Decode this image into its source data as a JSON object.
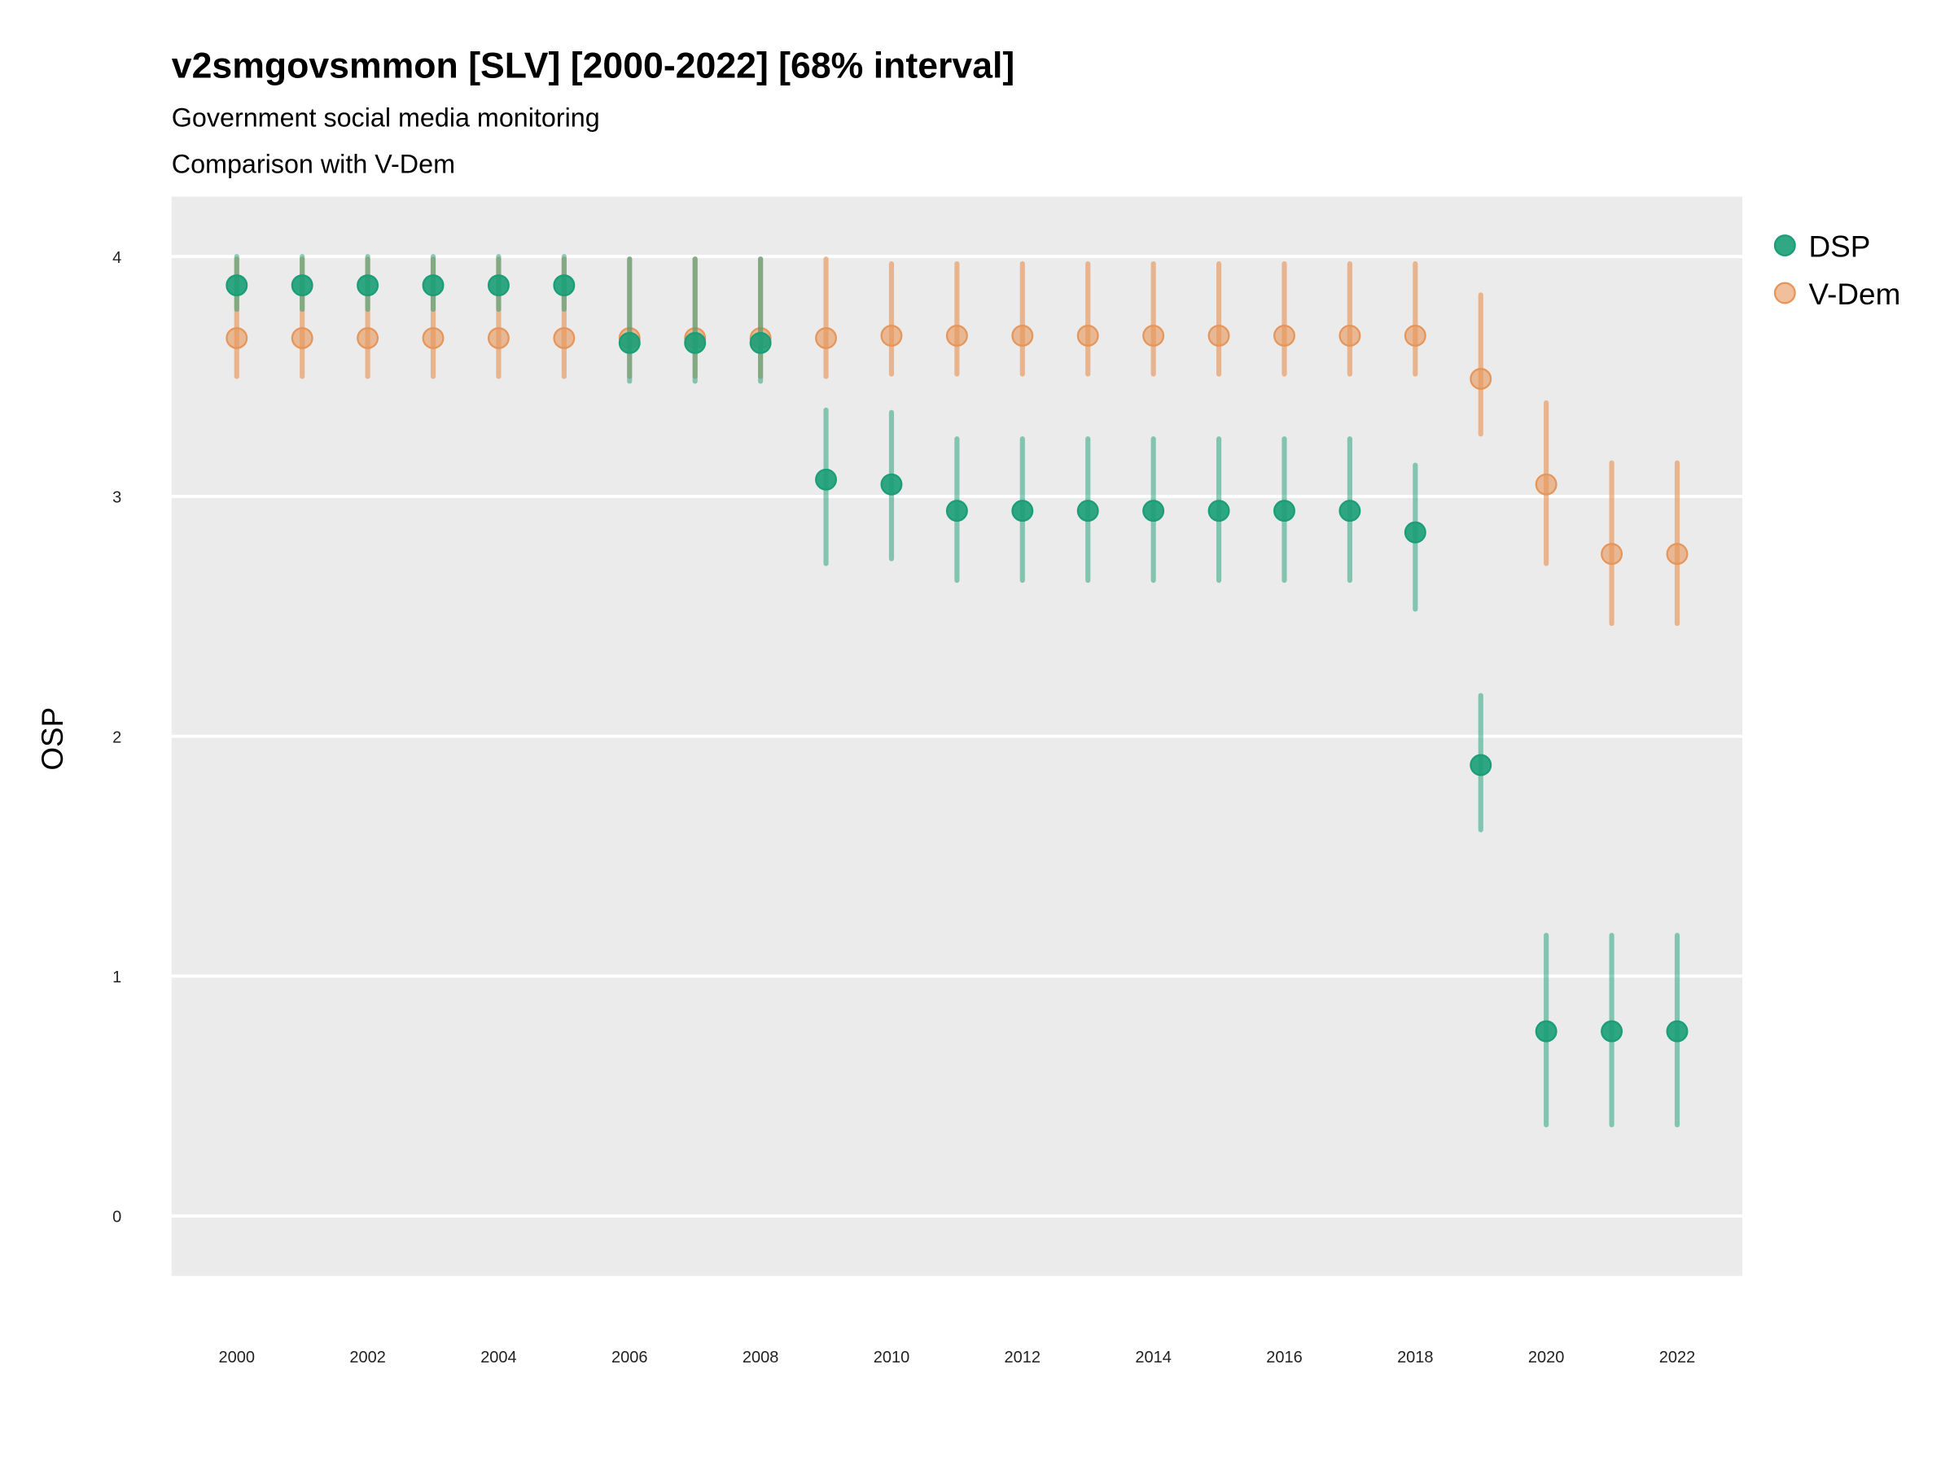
{
  "chart_data": {
    "type": "scatter",
    "title": "v2smgovsmmon [SLV] [2000-2022] [68% interval]",
    "subtitle": "Government social media monitoring",
    "caption": "Comparison with V-Dem",
    "xlabel": "",
    "ylabel": "OSP",
    "xlim": [
      1999,
      2023
    ],
    "ylim": [
      -0.25,
      4.25
    ],
    "x_ticks": [
      "2000",
      "2002",
      "2004",
      "2006",
      "2008",
      "2010",
      "2012",
      "2014",
      "2016",
      "2018",
      "2020",
      "2022"
    ],
    "y_ticks": [
      "0",
      "1",
      "2",
      "3",
      "4"
    ],
    "grid": true,
    "legend_position": "right",
    "x": [
      2000,
      2001,
      2002,
      2003,
      2004,
      2005,
      2006,
      2007,
      2008,
      2009,
      2010,
      2011,
      2012,
      2013,
      2014,
      2015,
      2016,
      2017,
      2018,
      2019,
      2020,
      2021,
      2022
    ],
    "series": [
      {
        "name": "DSP",
        "color": "#1b9e77",
        "values": [
          3.88,
          3.88,
          3.88,
          3.88,
          3.88,
          3.88,
          3.64,
          3.64,
          3.64,
          3.07,
          3.05,
          2.94,
          2.94,
          2.94,
          2.94,
          2.94,
          2.94,
          2.94,
          2.85,
          1.88,
          0.77,
          0.77,
          0.77
        ],
        "lower": [
          3.78,
          3.78,
          3.78,
          3.78,
          3.78,
          3.78,
          3.48,
          3.48,
          3.48,
          2.72,
          2.74,
          2.65,
          2.65,
          2.65,
          2.65,
          2.65,
          2.65,
          2.65,
          2.53,
          1.61,
          0.38,
          0.38,
          0.38
        ],
        "upper": [
          4.0,
          4.0,
          4.0,
          4.0,
          4.0,
          4.0,
          3.99,
          3.99,
          3.99,
          3.36,
          3.35,
          3.24,
          3.24,
          3.24,
          3.24,
          3.24,
          3.24,
          3.24,
          3.13,
          2.17,
          1.17,
          1.17,
          1.17
        ]
      },
      {
        "name": "V-Dem",
        "color": "#e6965a",
        "values": [
          3.66,
          3.66,
          3.66,
          3.66,
          3.66,
          3.66,
          3.66,
          3.66,
          3.66,
          3.66,
          3.67,
          3.67,
          3.67,
          3.67,
          3.67,
          3.67,
          3.67,
          3.67,
          3.67,
          3.49,
          3.05,
          2.76,
          2.76
        ],
        "lower": [
          3.5,
          3.5,
          3.5,
          3.5,
          3.5,
          3.5,
          3.5,
          3.5,
          3.5,
          3.5,
          3.51,
          3.51,
          3.51,
          3.51,
          3.51,
          3.51,
          3.51,
          3.51,
          3.51,
          3.26,
          2.72,
          2.47,
          2.47
        ],
        "upper": [
          3.99,
          3.99,
          3.99,
          3.99,
          3.99,
          3.99,
          3.99,
          3.99,
          3.99,
          3.99,
          3.97,
          3.97,
          3.97,
          3.97,
          3.97,
          3.97,
          3.97,
          3.97,
          3.97,
          3.84,
          3.39,
          3.14,
          3.14
        ]
      }
    ]
  }
}
